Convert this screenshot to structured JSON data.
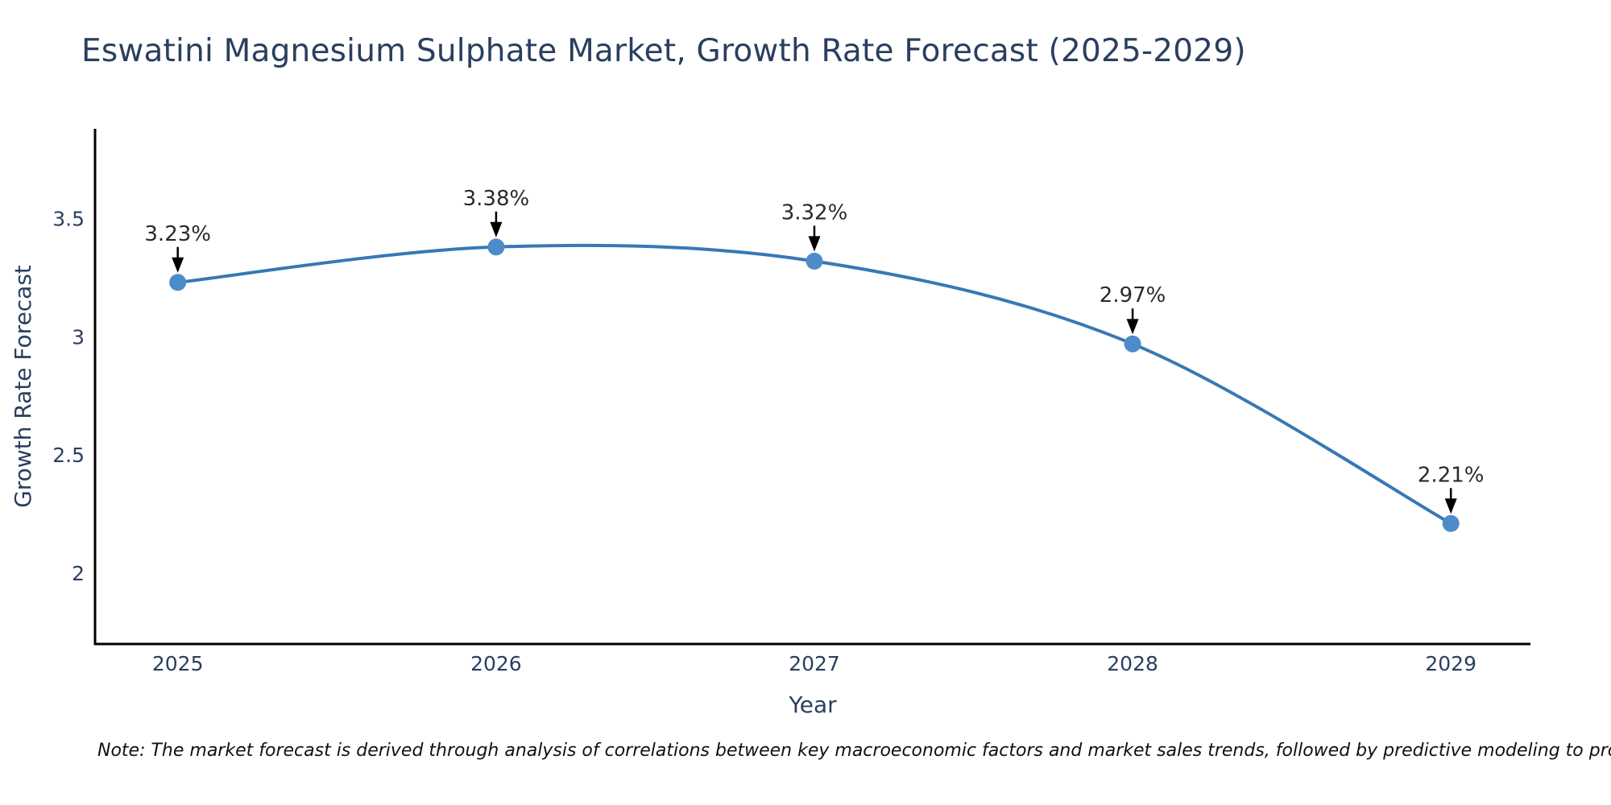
{
  "chart": {
    "title": "Eswatini Magnesium Sulphate Market, Growth Rate Forecast (2025-2029)",
    "note": "Note: The market forecast is derived through analysis of correlations between key macroeconomic factors and market sales trends, followed by predictive modeling to project future sales"
  },
  "chart_data": {
    "type": "line",
    "title": "Eswatini Magnesium Sulphate Market, Growth Rate Forecast (2025-2029)",
    "x": [
      2025,
      2026,
      2027,
      2028,
      2029
    ],
    "y": [
      3.23,
      3.38,
      3.32,
      2.97,
      2.21
    ],
    "point_labels": [
      "3.23%",
      "3.38%",
      "3.32%",
      "2.97%",
      "2.21%"
    ],
    "xlabel": "Year",
    "ylabel": "Growth Rate Forecast",
    "xticks": [
      2025,
      2026,
      2027,
      2028,
      2029
    ],
    "yticks": [
      3.5,
      3,
      2.5,
      2
    ],
    "xlim": [
      2024.74,
      2029.25
    ],
    "ylim": [
      1.7,
      3.88
    ],
    "grid": false,
    "legend": false,
    "line_shape": "spline",
    "annotations_have_arrows": true,
    "colors": {
      "line": "#3878b4",
      "marker": "#4d8cc8",
      "axis": "#000000",
      "tick_label": "#2a3f5f",
      "axis_title": "#2a3f5f",
      "title": "#2a3f5f",
      "annotation_text": "#2a2a2a",
      "arrow": "#000000",
      "background": "#ffffff"
    }
  }
}
